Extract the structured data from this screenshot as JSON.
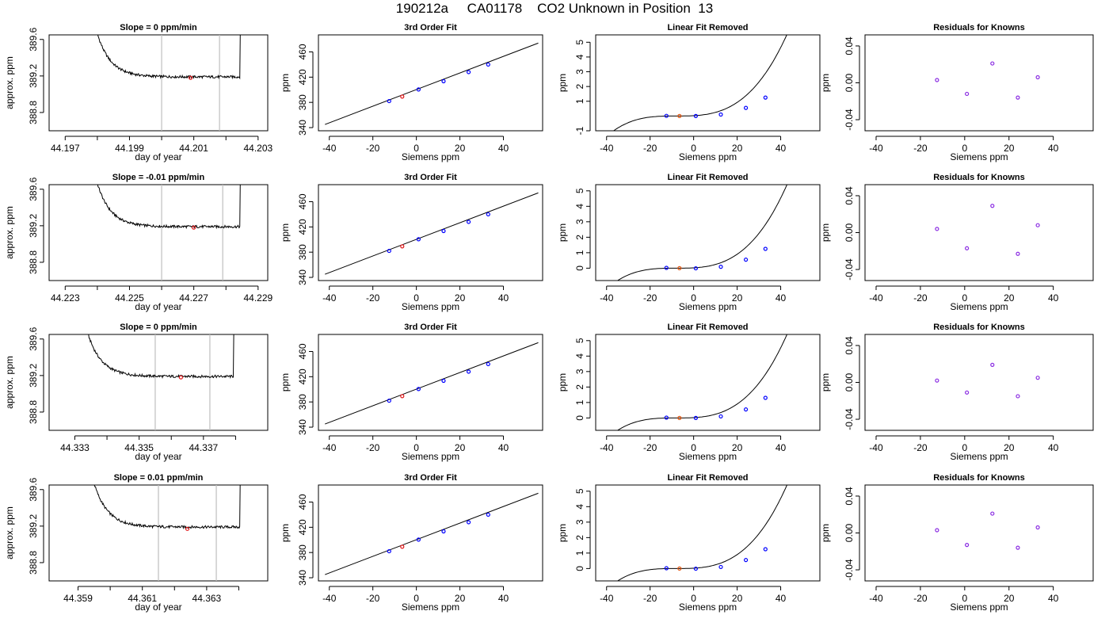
{
  "title": "190212a     CA01178    CO2 Unknown in Position  13",
  "colors": {
    "trace": "#000000",
    "window": "#bfbfbf",
    "mean_point": "#e41a1c",
    "known_point": "#0000ff",
    "unknown_point": "#e6550d",
    "residual_point": "#8a2be2"
  },
  "chart_data": [
    {
      "type": "line",
      "panel": "trace",
      "title": "Slope =  0  ppm/min",
      "xlabel": "day of year",
      "ylabel": "approx. ppm",
      "xlim": [
        44.1965,
        44.2033
      ],
      "ylim": [
        388.6,
        389.65
      ],
      "xticks": [
        44.197,
        44.198,
        44.199,
        44.2,
        44.201,
        44.202,
        44.203
      ],
      "xticklabels": [
        "44.197",
        "",
        "44.199",
        "",
        "44.201",
        "",
        "44.203"
      ],
      "yticks": [
        388.8,
        389.2,
        389.6
      ],
      "yticklabels": [
        "388.8",
        "389.2",
        "389.6"
      ],
      "start": 44.1979,
      "end": 44.2025,
      "plateau": 389.19,
      "window": [
        44.2,
        44.2018
      ],
      "mean_point": {
        "x": 44.2009,
        "y": 389.18
      }
    },
    {
      "type": "line",
      "panel": "fit",
      "title": "3rd Order Fit",
      "xlabel": "Siemens ppm",
      "ylabel": "ppm",
      "xlim": [
        -45,
        58
      ],
      "ylim": [
        335,
        487
      ],
      "xticks": [
        -40,
        -20,
        0,
        20,
        40
      ],
      "xticklabels": [
        "-40",
        "-20",
        "0",
        "20",
        "40"
      ],
      "yticks": [
        340,
        380,
        420,
        460
      ],
      "yticklabels": [
        "340",
        "380",
        "420",
        "460"
      ],
      "line": {
        "x": [
          -42,
          56
        ],
        "y": [
          345,
          474
        ]
      },
      "known": {
        "x": [
          -12.5,
          1,
          12.5,
          24,
          33
        ],
        "y": [
          382,
          400.5,
          413.5,
          428,
          440
        ]
      },
      "unknown": {
        "x": [
          -6.5
        ],
        "y": [
          389.2
        ]
      }
    },
    {
      "type": "line",
      "panel": "linear_removed",
      "title": "Linear Fit Removed",
      "xlabel": "Siemens ppm",
      "ylabel": "ppm",
      "xlim": [
        -45,
        58
      ],
      "ylim": [
        -1,
        5.5
      ],
      "xticks": [
        -40,
        -20,
        0,
        20,
        40
      ],
      "xticklabels": [
        "-40",
        "-20",
        "0",
        "20",
        "40"
      ],
      "yticks": [
        -1,
        1,
        2,
        3,
        4,
        5
      ],
      "yticklabels": [
        "-1",
        "1",
        "2",
        "3",
        "4",
        "5"
      ],
      "curve_x0": -8,
      "curve_k": 4.2e-05,
      "curve_range": [
        -42,
        56
      ],
      "known": {
        "x": [
          -12.5,
          1,
          12.5,
          24,
          33
        ],
        "y": [
          0.01,
          0.0,
          0.1,
          0.55,
          1.25
        ]
      },
      "unknown": {
        "x": [
          -6.5
        ],
        "y": [
          0.0
        ]
      }
    },
    {
      "type": "scatter",
      "panel": "residuals",
      "title": "Residuals for Knowns",
      "xlabel": "Siemens ppm",
      "ylabel": "ppm",
      "xlim": [
        -45,
        58
      ],
      "ylim": [
        -0.052,
        0.052
      ],
      "xticks": [
        -40,
        -20,
        0,
        20,
        40
      ],
      "xticklabels": [
        "-40",
        "-20",
        "0",
        "20",
        "40"
      ],
      "yticks": [
        -0.04,
        0.0,
        0.04
      ],
      "yticklabels": [
        "-0.04",
        "0.00",
        "0.04"
      ],
      "points": {
        "x": [
          -12.5,
          1,
          12.5,
          24,
          33
        ],
        "y": [
          0.003,
          -0.012,
          0.021,
          -0.016,
          0.006
        ]
      }
    },
    {
      "type": "line",
      "panel": "trace",
      "title": "Slope =  -0.01  ppm/min",
      "xlabel": "day of year",
      "ylabel": "approx. ppm",
      "xlim": [
        44.2225,
        44.2293
      ],
      "ylim": [
        388.6,
        389.65
      ],
      "xticks": [
        44.223,
        44.224,
        44.225,
        44.226,
        44.227,
        44.228,
        44.229
      ],
      "xticklabels": [
        "44.223",
        "",
        "44.225",
        "",
        "44.227",
        "",
        "44.229"
      ],
      "yticks": [
        388.8,
        389.2,
        389.6
      ],
      "yticklabels": [
        "388.8",
        "389.2",
        "389.6"
      ],
      "start": 44.2239,
      "end": 44.2285,
      "plateau": 389.19,
      "window": [
        44.226,
        44.2279
      ],
      "mean_point": {
        "x": 44.227,
        "y": 389.18
      }
    },
    {
      "type": "line",
      "panel": "fit",
      "title": "3rd Order Fit",
      "xlabel": "Siemens ppm",
      "ylabel": "ppm",
      "xlim": [
        -45,
        58
      ],
      "ylim": [
        335,
        487
      ],
      "xticks": [
        -40,
        -20,
        0,
        20,
        40
      ],
      "xticklabels": [
        "-40",
        "-20",
        "0",
        "20",
        "40"
      ],
      "yticks": [
        340,
        380,
        420,
        460
      ],
      "yticklabels": [
        "340",
        "380",
        "420",
        "460"
      ],
      "line": {
        "x": [
          -42,
          56
        ],
        "y": [
          345,
          474
        ]
      },
      "known": {
        "x": [
          -12.5,
          1,
          12.5,
          24,
          33
        ],
        "y": [
          382,
          400.5,
          413.5,
          428,
          440
        ]
      },
      "unknown": {
        "x": [
          -6.5
        ],
        "y": [
          389.2
        ]
      }
    },
    {
      "type": "line",
      "panel": "linear_removed",
      "title": "Linear Fit Removed",
      "xlabel": "Siemens ppm",
      "ylabel": "ppm",
      "xlim": [
        -45,
        58
      ],
      "ylim": [
        -0.8,
        5.4
      ],
      "xticks": [
        -40,
        -20,
        0,
        20,
        40
      ],
      "xticklabels": [
        "-40",
        "-20",
        "0",
        "20",
        "40"
      ],
      "yticks": [
        0,
        1,
        2,
        3,
        4,
        5
      ],
      "yticklabels": [
        "0",
        "1",
        "2",
        "3",
        "4",
        "5"
      ],
      "curve_x0": -8,
      "curve_k": 4.1e-05,
      "curve_range": [
        -42,
        56
      ],
      "known": {
        "x": [
          -12.5,
          1,
          12.5,
          24,
          33
        ],
        "y": [
          0.02,
          -0.01,
          0.09,
          0.55,
          1.25
        ]
      },
      "unknown": {
        "x": [
          -6.5
        ],
        "y": [
          0.0
        ]
      }
    },
    {
      "type": "scatter",
      "panel": "residuals",
      "title": "Residuals for Knowns",
      "xlabel": "Siemens ppm",
      "ylabel": "ppm",
      "xlim": [
        -45,
        58
      ],
      "ylim": [
        -0.052,
        0.052
      ],
      "xticks": [
        -40,
        -20,
        0,
        20,
        40
      ],
      "xticklabels": [
        "-40",
        "-20",
        "0",
        "20",
        "40"
      ],
      "yticks": [
        -0.04,
        0.0,
        0.04
      ],
      "yticklabels": [
        "-0.04",
        "0.00",
        "0.04"
      ],
      "points": {
        "x": [
          -12.5,
          1,
          12.5,
          24,
          33
        ],
        "y": [
          0.004,
          -0.017,
          0.029,
          -0.023,
          0.008
        ]
      }
    },
    {
      "type": "line",
      "panel": "trace",
      "title": "Slope =  0  ppm/min",
      "xlabel": "day of year",
      "ylabel": "approx. ppm",
      "xlim": [
        44.3322,
        44.339
      ],
      "ylim": [
        388.6,
        389.65
      ],
      "xticks": [
        44.333,
        44.334,
        44.335,
        44.336,
        44.337,
        44.338
      ],
      "xticklabels": [
        "44.333",
        "",
        "44.335",
        "",
        "44.337",
        ""
      ],
      "yticks": [
        388.8,
        389.2,
        389.6
      ],
      "yticklabels": [
        "388.8",
        "389.2",
        "389.6"
      ],
      "start": 44.3333,
      "end": 44.338,
      "plateau": 389.19,
      "window": [
        44.3355,
        44.3372
      ],
      "mean_point": {
        "x": 44.3363,
        "y": 389.18
      }
    },
    {
      "type": "line",
      "panel": "fit",
      "title": "3rd Order Fit",
      "xlabel": "Siemens ppm",
      "ylabel": "ppm",
      "xlim": [
        -45,
        58
      ],
      "ylim": [
        335,
        487
      ],
      "xticks": [
        -40,
        -20,
        0,
        20,
        40
      ],
      "xticklabels": [
        "-40",
        "-20",
        "0",
        "20",
        "40"
      ],
      "yticks": [
        340,
        380,
        420,
        460
      ],
      "yticklabels": [
        "340",
        "380",
        "420",
        "460"
      ],
      "line": {
        "x": [
          -42,
          56
        ],
        "y": [
          345,
          474
        ]
      },
      "known": {
        "x": [
          -12.5,
          1,
          12.5,
          24,
          33
        ],
        "y": [
          382,
          400.5,
          413.5,
          428,
          440
        ]
      },
      "unknown": {
        "x": [
          -6.5
        ],
        "y": [
          389.2
        ]
      }
    },
    {
      "type": "line",
      "panel": "linear_removed",
      "title": "Linear Fit Removed",
      "xlabel": "Siemens ppm",
      "ylabel": "ppm",
      "xlim": [
        -45,
        58
      ],
      "ylim": [
        -0.8,
        5.4
      ],
      "xticks": [
        -40,
        -20,
        0,
        20,
        40
      ],
      "xticklabels": [
        "-40",
        "-20",
        "0",
        "20",
        "40"
      ],
      "yticks": [
        0,
        1,
        2,
        3,
        4,
        5
      ],
      "yticklabels": [
        "0",
        "1",
        "2",
        "3",
        "4",
        "5"
      ],
      "curve_x0": -8,
      "curve_k": 4.1e-05,
      "curve_range": [
        -42,
        56
      ],
      "known": {
        "x": [
          -12.5,
          1,
          12.5,
          24,
          33
        ],
        "y": [
          0.02,
          0.0,
          0.1,
          0.55,
          1.3
        ]
      },
      "unknown": {
        "x": [
          -6.5
        ],
        "y": [
          0.0
        ]
      }
    },
    {
      "type": "scatter",
      "panel": "residuals",
      "title": "Residuals for Knowns",
      "xlabel": "Siemens ppm",
      "ylabel": "ppm",
      "xlim": [
        -45,
        58
      ],
      "ylim": [
        -0.052,
        0.052
      ],
      "xticks": [
        -40,
        -20,
        0,
        20,
        40
      ],
      "xticklabels": [
        "-40",
        "-20",
        "0",
        "20",
        "40"
      ],
      "yticks": [
        -0.04,
        0.0,
        0.04
      ],
      "yticklabels": [
        "-0.04",
        "0.00",
        "0.04"
      ],
      "points": {
        "x": [
          -12.5,
          1,
          12.5,
          24,
          33
        ],
        "y": [
          0.002,
          -0.011,
          0.019,
          -0.015,
          0.005
        ]
      }
    },
    {
      "type": "line",
      "panel": "trace",
      "title": "Slope =  0.01  ppm/min",
      "xlabel": "day of year",
      "ylabel": "approx. ppm",
      "xlim": [
        44.3581,
        44.3649
      ],
      "ylim": [
        388.6,
        389.65
      ],
      "xticks": [
        44.359,
        44.36,
        44.361,
        44.362,
        44.363,
        44.364
      ],
      "xticklabels": [
        "44.359",
        "",
        "44.361",
        "",
        "44.363",
        ""
      ],
      "yticks": [
        388.8,
        389.2,
        389.6
      ],
      "yticklabels": [
        "388.8",
        "389.2",
        "389.6"
      ],
      "start": 44.3594,
      "end": 44.3641,
      "plateau": 389.19,
      "window": [
        44.3615,
        44.3633
      ],
      "mean_point": {
        "x": 44.3624,
        "y": 389.17
      }
    },
    {
      "type": "line",
      "panel": "fit",
      "title": "3rd Order Fit",
      "xlabel": "Siemens ppm",
      "ylabel": "ppm",
      "xlim": [
        -45,
        58
      ],
      "ylim": [
        335,
        487
      ],
      "xticks": [
        -40,
        -20,
        0,
        20,
        40
      ],
      "xticklabels": [
        "-40",
        "-20",
        "0",
        "20",
        "40"
      ],
      "yticks": [
        340,
        380,
        420,
        460
      ],
      "yticklabels": [
        "340",
        "380",
        "420",
        "460"
      ],
      "line": {
        "x": [
          -42,
          56
        ],
        "y": [
          345,
          474
        ]
      },
      "known": {
        "x": [
          -12.5,
          1,
          12.5,
          24,
          33
        ],
        "y": [
          382,
          400.5,
          413.5,
          428,
          440
        ]
      },
      "unknown": {
        "x": [
          -6.5
        ],
        "y": [
          389.2
        ]
      }
    },
    {
      "type": "line",
      "panel": "linear_removed",
      "title": "Linear Fit Removed",
      "xlabel": "Siemens ppm",
      "ylabel": "ppm",
      "xlim": [
        -45,
        58
      ],
      "ylim": [
        -0.8,
        5.4
      ],
      "xticks": [
        -40,
        -20,
        0,
        20,
        40
      ],
      "xticklabels": [
        "-40",
        "-20",
        "0",
        "20",
        "40"
      ],
      "yticks": [
        0,
        1,
        2,
        3,
        4,
        5
      ],
      "yticklabels": [
        "0",
        "1",
        "2",
        "3",
        "4",
        "5"
      ],
      "curve_x0": -8,
      "curve_k": 4.1e-05,
      "curve_range": [
        -42,
        56
      ],
      "known": {
        "x": [
          -12.5,
          1,
          12.5,
          24,
          33
        ],
        "y": [
          0.02,
          -0.01,
          0.1,
          0.55,
          1.25
        ]
      },
      "unknown": {
        "x": [
          -6.5
        ],
        "y": [
          0.0
        ]
      }
    },
    {
      "type": "scatter",
      "panel": "residuals",
      "title": "Residuals for Knowns",
      "xlabel": "Siemens ppm",
      "ylabel": "ppm",
      "xlim": [
        -45,
        58
      ],
      "ylim": [
        -0.052,
        0.052
      ],
      "xticks": [
        -40,
        -20,
        0,
        20,
        40
      ],
      "xticklabels": [
        "-40",
        "-20",
        "0",
        "20",
        "40"
      ],
      "yticks": [
        -0.04,
        0.0,
        0.04
      ],
      "yticklabels": [
        "-0.04",
        "0.00",
        "0.04"
      ],
      "points": {
        "x": [
          -12.5,
          1,
          12.5,
          24,
          33
        ],
        "y": [
          0.003,
          -0.013,
          0.021,
          -0.016,
          0.006
        ]
      }
    }
  ]
}
